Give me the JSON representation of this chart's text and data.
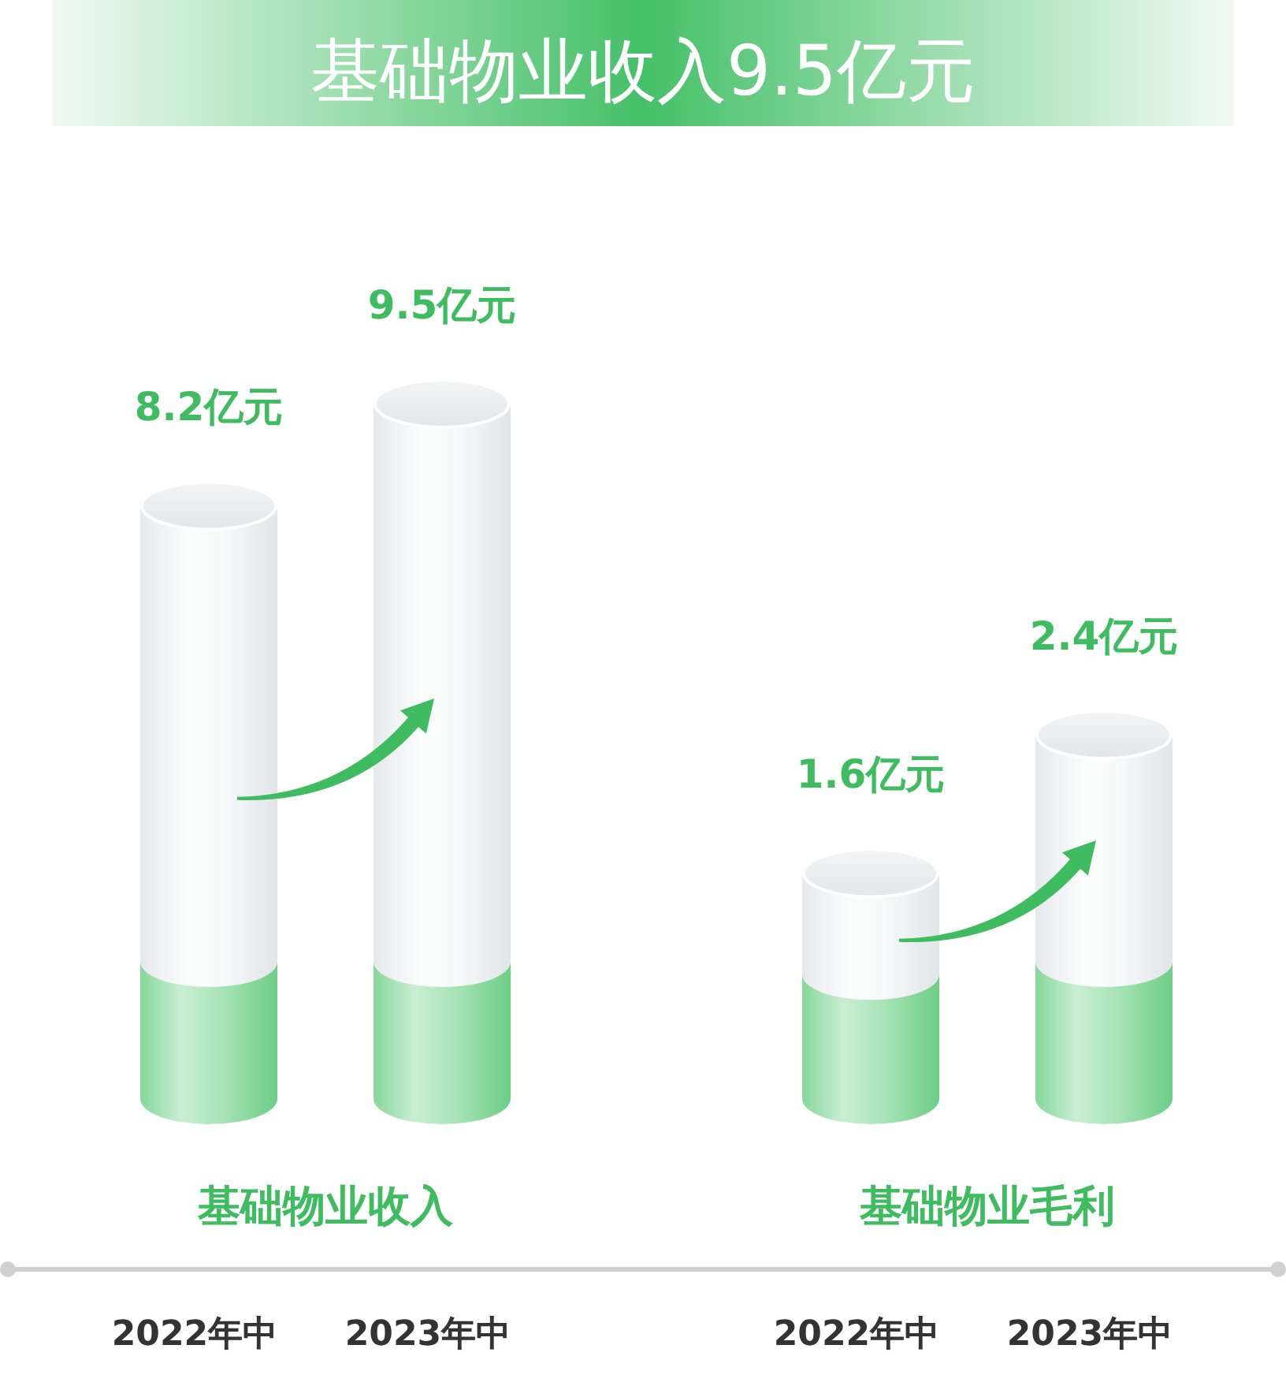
{
  "chart_data": [
    {
      "type": "bar",
      "title": "基础物业收入9.5亿元",
      "xlabel": "基础物业收入",
      "categories": [
        "2022年中",
        "2023年中"
      ],
      "values": [
        8.2,
        9.5
      ],
      "value_labels": [
        "8.2亿元",
        "9.5亿元"
      ]
    },
    {
      "type": "bar",
      "xlabel": "基础物业毛利",
      "categories": [
        "2022年中",
        "2023年中"
      ],
      "values": [
        1.6,
        2.4
      ],
      "value_labels": [
        "1.6亿元",
        "2.4亿元"
      ]
    }
  ]
}
